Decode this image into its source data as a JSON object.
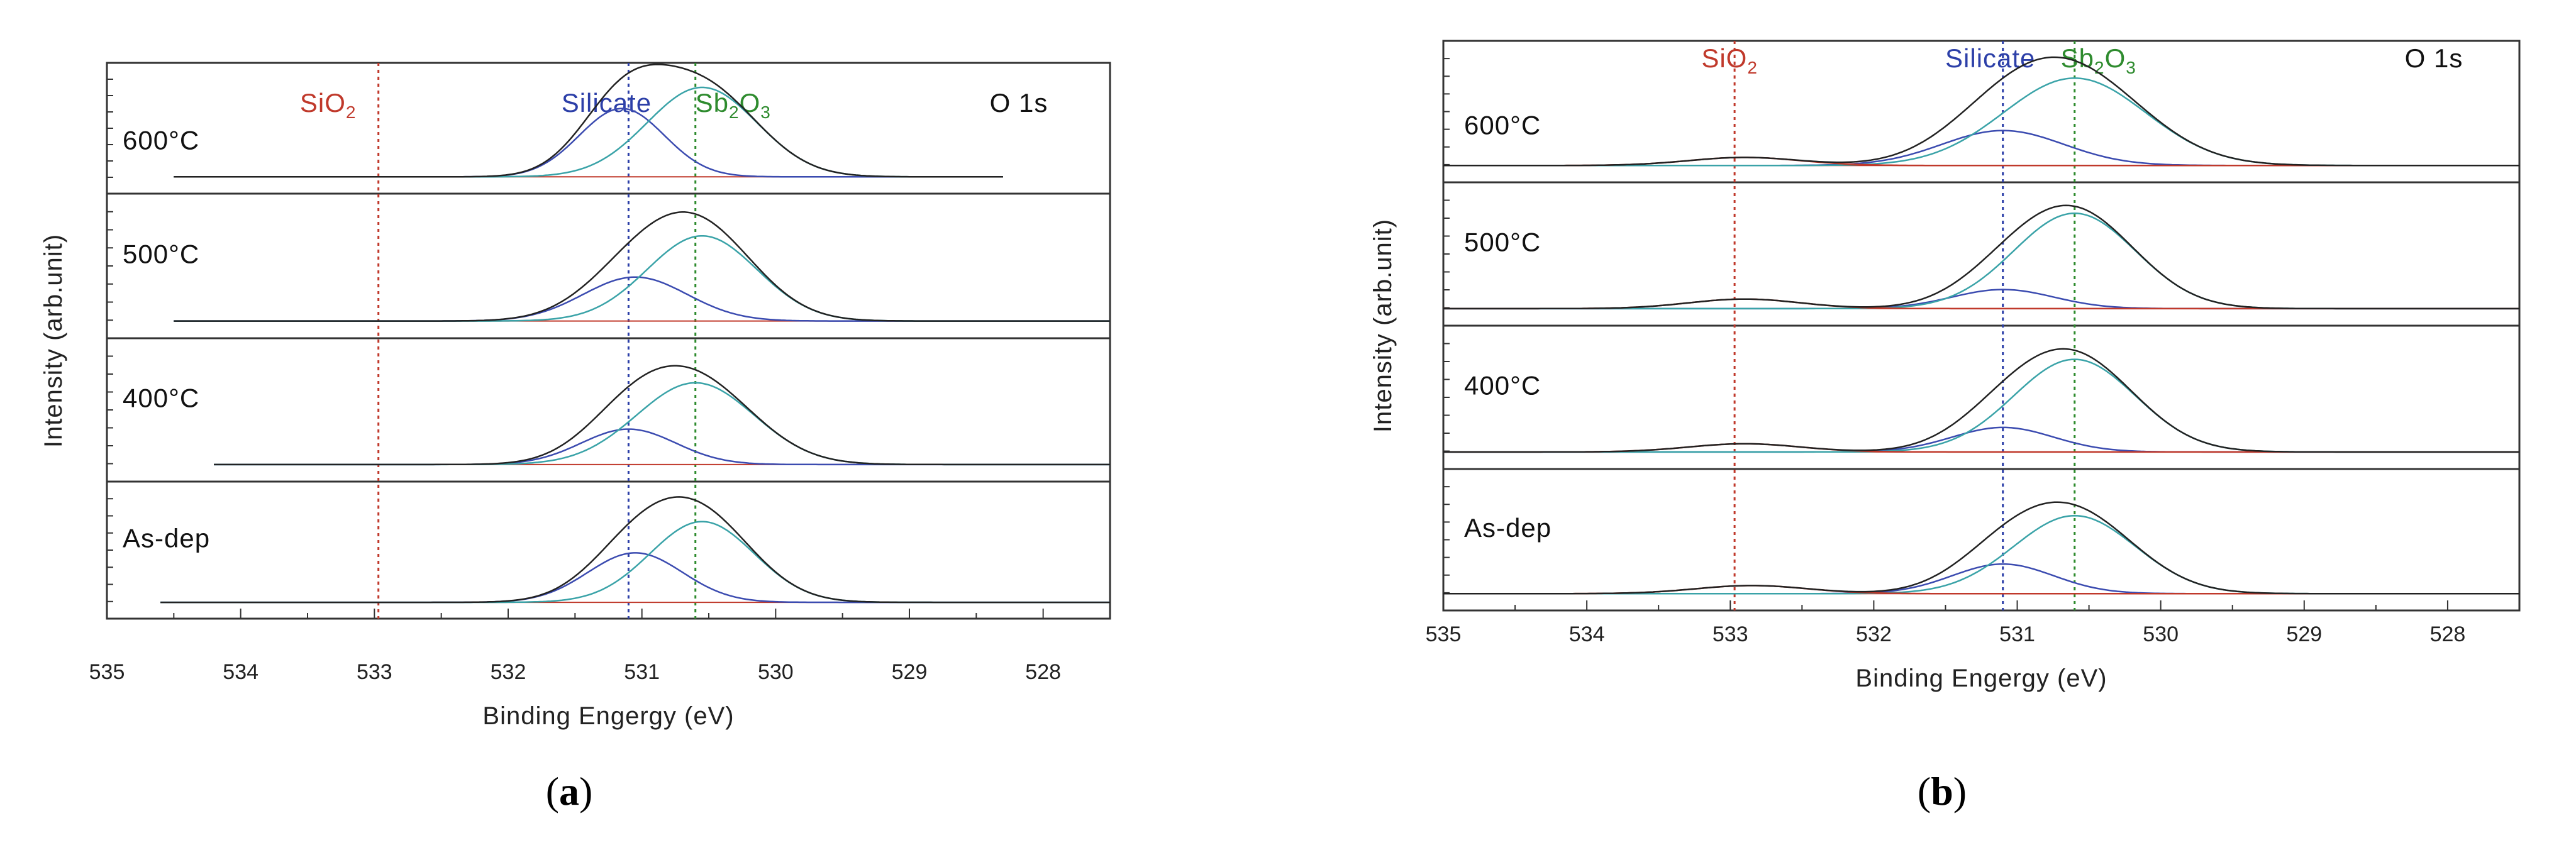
{
  "chart_data": [
    {
      "type": "line",
      "subfigure": "a",
      "caption": "a",
      "title": "O 1s",
      "xlabel": "Binding Engergy (eV)",
      "ylabel": "Intensity (arb.unit)",
      "xlim": [
        535,
        527.5
      ],
      "x_ticks": [
        535,
        534,
        533,
        532,
        531,
        530,
        529,
        528
      ],
      "references": [
        {
          "label": "SiO",
          "sub": "2",
          "rest": "",
          "x": 532.97,
          "color": "#c0392b"
        },
        {
          "label": "Silicate",
          "sub": "",
          "rest": "",
          "x": 531.1,
          "color": "#2c3fa8"
        },
        {
          "label": "Sb",
          "sub": "2",
          "rest": "O",
          "sub2": "3",
          "x": 530.6,
          "color": "#2e8b2e"
        }
      ],
      "panels": [
        {
          "label": "600",
          "unit": "°C",
          "xrange": [
            534.5,
            528.3
          ],
          "background": 0.03,
          "peaks": [
            {
              "name": "Silicate",
              "center": 531.15,
              "amp": 0.55,
              "width": 0.45,
              "color": "#3b4bb0"
            },
            {
              "name": "Sb2O3",
              "center": 530.55,
              "amp": 0.72,
              "width": 0.58,
              "color": "#3aa3a8"
            },
            {
              "name": "SiO2",
              "center": 533.0,
              "amp": 0.0,
              "width": 0.5,
              "color": "#c0392b"
            }
          ]
        },
        {
          "label": "500",
          "unit": "°C",
          "xrange": [
            534.5,
            527.5
          ],
          "background": 0.02,
          "peaks": [
            {
              "name": "Silicate",
              "center": 531.05,
              "amp": 0.32,
              "width": 0.55,
              "color": "#3b4bb0"
            },
            {
              "name": "Sb2O3",
              "center": 530.55,
              "amp": 0.62,
              "width": 0.58,
              "color": "#3aa3a8"
            },
            {
              "name": "SiO2",
              "center": 533.0,
              "amp": 0.0,
              "width": 0.5,
              "color": "#c0392b"
            }
          ]
        },
        {
          "label": "400",
          "unit": "°C",
          "xrange": [
            534.2,
            527.5
          ],
          "background": 0.02,
          "peaks": [
            {
              "name": "Silicate",
              "center": 531.1,
              "amp": 0.26,
              "width": 0.5,
              "color": "#3b4bb0"
            },
            {
              "name": "Sb2O3",
              "center": 530.6,
              "amp": 0.6,
              "width": 0.62,
              "color": "#3aa3a8"
            },
            {
              "name": "SiO2",
              "center": 533.0,
              "amp": 0.0,
              "width": 0.5,
              "color": "#c0392b"
            }
          ]
        },
        {
          "label": "As-dep",
          "unit": "",
          "xrange": [
            534.6,
            527.5
          ],
          "background": 0.02,
          "peaks": [
            {
              "name": "Silicate",
              "center": 531.05,
              "amp": 0.38,
              "width": 0.5,
              "color": "#3b4bb0"
            },
            {
              "name": "Sb2O3",
              "center": 530.55,
              "amp": 0.62,
              "width": 0.55,
              "color": "#3aa3a8"
            },
            {
              "name": "SiO2",
              "center": 533.0,
              "amp": 0.0,
              "width": 0.5,
              "color": "#c0392b"
            }
          ]
        }
      ]
    },
    {
      "type": "line",
      "subfigure": "b",
      "caption": "b",
      "title": "O 1s",
      "xlabel": "Binding Engergy (eV)",
      "ylabel": "Intensity (arb.unit)",
      "xlim": [
        535,
        527.5
      ],
      "x_ticks": [
        535,
        534,
        533,
        532,
        531,
        530,
        529,
        528
      ],
      "references": [
        {
          "label": "SiO",
          "sub": "2",
          "rest": "",
          "x": 532.97,
          "color": "#c0392b"
        },
        {
          "label": "Silicate",
          "sub": "",
          "rest": "",
          "x": 531.1,
          "color": "#2c3fa8"
        },
        {
          "label": "Sb",
          "sub": "2",
          "rest": "O",
          "sub2": "3",
          "x": 530.6,
          "color": "#2e8b2e"
        }
      ],
      "panels": [
        {
          "label": "600",
          "unit": "°C",
          "xrange": [
            535,
            527.5
          ],
          "background": 0.02,
          "peaks": [
            {
              "name": "Silicate",
              "center": 531.1,
              "amp": 0.26,
              "width": 0.6,
              "color": "#3b4bb0"
            },
            {
              "name": "Sb2O3",
              "center": 530.6,
              "amp": 0.65,
              "width": 0.7,
              "color": "#3aa3a8"
            },
            {
              "name": "SiO2",
              "center": 532.9,
              "amp": 0.06,
              "width": 0.55,
              "color": "#c0392b"
            }
          ]
        },
        {
          "label": "500",
          "unit": "°C",
          "xrange": [
            535,
            527.5
          ],
          "background": 0.02,
          "peaks": [
            {
              "name": "Silicate",
              "center": 531.1,
              "amp": 0.14,
              "width": 0.5,
              "color": "#3b4bb0"
            },
            {
              "name": "Sb2O3",
              "center": 530.6,
              "amp": 0.7,
              "width": 0.6,
              "color": "#3aa3a8"
            },
            {
              "name": "SiO2",
              "center": 532.9,
              "amp": 0.07,
              "width": 0.55,
              "color": "#c0392b"
            }
          ]
        },
        {
          "label": "400",
          "unit": "°C",
          "xrange": [
            535,
            527.5
          ],
          "background": 0.02,
          "peaks": [
            {
              "name": "Silicate",
              "center": 531.1,
              "amp": 0.18,
              "width": 0.5,
              "color": "#3b4bb0"
            },
            {
              "name": "Sb2O3",
              "center": 530.6,
              "amp": 0.68,
              "width": 0.6,
              "color": "#3aa3a8"
            },
            {
              "name": "SiO2",
              "center": 532.9,
              "amp": 0.06,
              "width": 0.55,
              "color": "#c0392b"
            }
          ]
        },
        {
          "label": "As-dep",
          "unit": "",
          "xrange": [
            535,
            527.5
          ],
          "background": 0.02,
          "peaks": [
            {
              "name": "Silicate",
              "center": 531.1,
              "amp": 0.22,
              "width": 0.5,
              "color": "#3b4bb0"
            },
            {
              "name": "Sb2O3",
              "center": 530.6,
              "amp": 0.58,
              "width": 0.6,
              "color": "#3aa3a8"
            },
            {
              "name": "SiO2",
              "center": 532.85,
              "amp": 0.06,
              "width": 0.55,
              "color": "#c0392b"
            }
          ]
        }
      ]
    }
  ]
}
